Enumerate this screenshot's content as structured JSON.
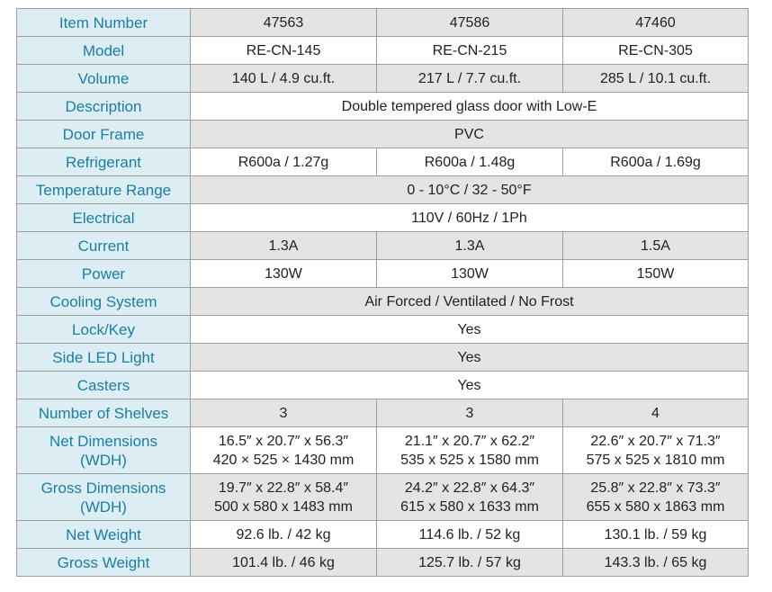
{
  "table": {
    "rows": [
      {
        "label": "Item Number",
        "cells": [
          "47563",
          "47586",
          "47460"
        ]
      },
      {
        "label": "Model",
        "cells": [
          "RE-CN-145",
          "RE-CN-215",
          "RE-CN-305"
        ]
      },
      {
        "label": "Volume",
        "cells": [
          "140 L /  4.9 cu.ft.",
          "217 L / 7.7 cu.ft.",
          "285 L / 10.1 cu.ft."
        ]
      },
      {
        "label": "Description",
        "cells": [
          "Double tempered glass door with Low-E"
        ]
      },
      {
        "label": "Door Frame",
        "cells": [
          "PVC"
        ]
      },
      {
        "label": "Refrigerant",
        "cells": [
          "R600a / 1.27g",
          "R600a / 1.48g",
          "R600a / 1.69g"
        ]
      },
      {
        "label": "Temperature Range",
        "cells": [
          "0 - 10°C / 32 - 50°F"
        ]
      },
      {
        "label": "Electrical",
        "cells": [
          "110V / 60Hz / 1Ph"
        ]
      },
      {
        "label": "Current",
        "cells": [
          "1.3A",
          "1.3A",
          "1.5A"
        ]
      },
      {
        "label": "Power",
        "cells": [
          "130W",
          "130W",
          "150W"
        ]
      },
      {
        "label": "Cooling System",
        "cells": [
          "Air Forced / Ventilated / No Frost"
        ]
      },
      {
        "label": "Lock/Key",
        "cells": [
          "Yes"
        ]
      },
      {
        "label": "Side LED Light",
        "cells": [
          "Yes"
        ]
      },
      {
        "label": "Casters",
        "cells": [
          "Yes"
        ]
      },
      {
        "label": "Number of Shelves",
        "cells": [
          "3",
          "3",
          "4"
        ]
      },
      {
        "label": "Net Dimensions\n(WDH)",
        "cells": [
          "16.5″ x 20.7″ x 56.3″\n420 × 525 × 1430 mm",
          "21.1″ x 20.7″ x 62.2″\n535 x 525 x 1580 mm",
          "22.6″ x 20.7″ x 71.3″\n575 x 525 x 1810 mm"
        ]
      },
      {
        "label": "Gross Dimensions\n(WDH)",
        "cells": [
          "19.7″ x 22.8″ x 58.4″\n500 x 580 x 1483 mm",
          "24.2″ x 22.8″ x 64.3″\n615 x 580 x 1633 mm",
          "25.8″ x 22.8″ x 73.3″\n655 x 580 x 1863 mm"
        ]
      },
      {
        "label": "Net Weight",
        "cells": [
          "92.6 lb. / 42 kg",
          "114.6 lb. / 52 kg",
          "130.1 lb. / 59 kg"
        ]
      },
      {
        "label": "Gross Weight",
        "cells": [
          "101.4 lb. / 46 kg",
          "125.7 lb. / 57 kg",
          "143.3 lb. / 65 kg"
        ]
      }
    ]
  }
}
